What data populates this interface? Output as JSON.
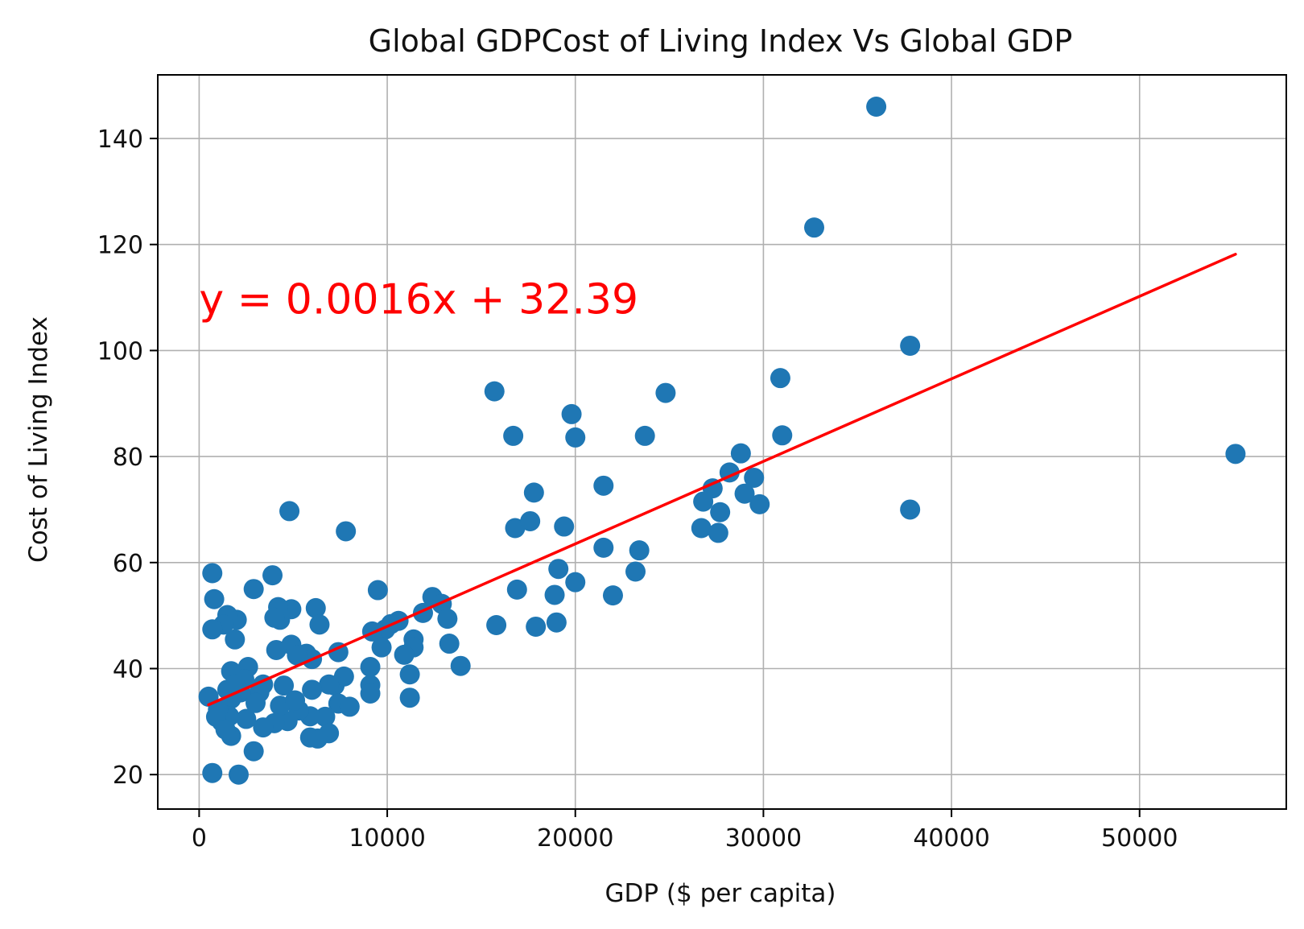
{
  "chart_data": {
    "type": "scatter",
    "title": "Global GDPCost of Living Index Vs Global GDP",
    "xlabel": "GDP ($ per capita)",
    "ylabel": "Cost of Living Index",
    "xlim": [
      -2200,
      57800
    ],
    "ylim": [
      13.5,
      152
    ],
    "xticks": [
      0,
      10000,
      20000,
      30000,
      40000,
      50000
    ],
    "xtick_labels": [
      "0",
      "10000",
      "20000",
      "30000",
      "40000",
      "50000"
    ],
    "yticks": [
      20,
      40,
      60,
      80,
      100,
      120,
      140
    ],
    "ytick_labels": [
      "20",
      "40",
      "60",
      "80",
      "100",
      "120",
      "140"
    ],
    "grid": true,
    "point_color": "#1f77b4",
    "line_color": "#ff0000",
    "annotation": {
      "text": "y = 0.0016x + 32.39",
      "x": 0,
      "y": 107,
      "color": "#ff0000"
    },
    "regression": {
      "slope": 0.0015567,
      "intercept": 32.39,
      "x_range": [
        500,
        55100
      ]
    },
    "points": [
      [
        36000,
        146
      ],
      [
        32700,
        123.2
      ],
      [
        37800,
        100.9
      ],
      [
        30900,
        94.8
      ],
      [
        24800,
        92
      ],
      [
        15700,
        92.3
      ],
      [
        19800,
        88
      ],
      [
        20000,
        83.6
      ],
      [
        16700,
        83.9
      ],
      [
        23700,
        83.9
      ],
      [
        31000,
        84
      ],
      [
        55100,
        80.5
      ],
      [
        28800,
        80.6
      ],
      [
        28200,
        77
      ],
      [
        29500,
        76
      ],
      [
        29000,
        73
      ],
      [
        27300,
        74
      ],
      [
        26800,
        71.5
      ],
      [
        29800,
        71
      ],
      [
        27700,
        69.5
      ],
      [
        37800,
        70
      ],
      [
        21500,
        74.5
      ],
      [
        17800,
        73.2
      ],
      [
        26700,
        66.5
      ],
      [
        27600,
        65.6
      ],
      [
        19400,
        66.8
      ],
      [
        16800,
        66.5
      ],
      [
        17600,
        67.8
      ],
      [
        21500,
        62.8
      ],
      [
        23400,
        62.3
      ],
      [
        23200,
        58.3
      ],
      [
        19100,
        58.8
      ],
      [
        20000,
        56.3
      ],
      [
        16900,
        54.9
      ],
      [
        22000,
        53.8
      ],
      [
        18900,
        53.9
      ],
      [
        12400,
        53.5
      ],
      [
        12900,
        52.2
      ],
      [
        11900,
        50.5
      ],
      [
        13200,
        49.4
      ],
      [
        10600,
        49
      ],
      [
        10200,
        48.4
      ],
      [
        9900,
        47.4
      ],
      [
        9200,
        47
      ],
      [
        15800,
        48.2
      ],
      [
        17900,
        47.9
      ],
      [
        19000,
        48.7
      ],
      [
        13300,
        44.7
      ],
      [
        13900,
        40.5
      ],
      [
        11400,
        45.5
      ],
      [
        11400,
        44
      ],
      [
        10900,
        42.6
      ],
      [
        9700,
        44
      ],
      [
        9500,
        54.8
      ],
      [
        9100,
        40.3
      ],
      [
        9100,
        36.9
      ],
      [
        9100,
        35.3
      ],
      [
        11200,
        38.9
      ],
      [
        11200,
        34.5
      ],
      [
        7800,
        65.9
      ],
      [
        4800,
        69.7
      ],
      [
        7700,
        38.5
      ],
      [
        7400,
        43.1
      ],
      [
        7200,
        36.8
      ],
      [
        7400,
        33.4
      ],
      [
        6900,
        37
      ],
      [
        6700,
        30.9
      ],
      [
        6900,
        27.8
      ],
      [
        6200,
        51.4
      ],
      [
        6400,
        48.3
      ],
      [
        5700,
        42.8
      ],
      [
        6000,
        41.8
      ],
      [
        6000,
        36
      ],
      [
        5900,
        31
      ],
      [
        5900,
        27
      ],
      [
        6300,
        26.8
      ],
      [
        4900,
        51.2
      ],
      [
        4900,
        44.5
      ],
      [
        5200,
        42.5
      ],
      [
        5300,
        32.1
      ],
      [
        4700,
        30.1
      ],
      [
        4500,
        36.8
      ],
      [
        4300,
        49.2
      ],
      [
        4200,
        51.6
      ],
      [
        3900,
        57.6
      ],
      [
        4000,
        49.6
      ],
      [
        4100,
        43.5
      ],
      [
        4300,
        33
      ],
      [
        4000,
        29.7
      ],
      [
        3400,
        37
      ],
      [
        3200,
        35.5
      ],
      [
        3400,
        28.9
      ],
      [
        2900,
        55
      ],
      [
        2600,
        40.3
      ],
      [
        2200,
        35.5
      ],
      [
        2500,
        30.5
      ],
      [
        2900,
        24.4
      ],
      [
        2100,
        20
      ],
      [
        2000,
        49.2
      ],
      [
        1900,
        45.5
      ],
      [
        1500,
        50.1
      ],
      [
        1700,
        39.5
      ],
      [
        1700,
        34.3
      ],
      [
        1600,
        31
      ],
      [
        1700,
        27.3
      ],
      [
        1300,
        48.3
      ],
      [
        1200,
        30
      ],
      [
        1000,
        32.3
      ],
      [
        900,
        30.9
      ],
      [
        800,
        53.1
      ],
      [
        700,
        58
      ],
      [
        700,
        47.4
      ],
      [
        700,
        20.3
      ],
      [
        500,
        34.7
      ],
      [
        1500,
        36
      ],
      [
        2400,
        38
      ],
      [
        3000,
        33.5
      ],
      [
        5100,
        34
      ],
      [
        8000,
        32.8
      ],
      [
        1400,
        28.5
      ],
      [
        1900,
        37
      ]
    ]
  }
}
